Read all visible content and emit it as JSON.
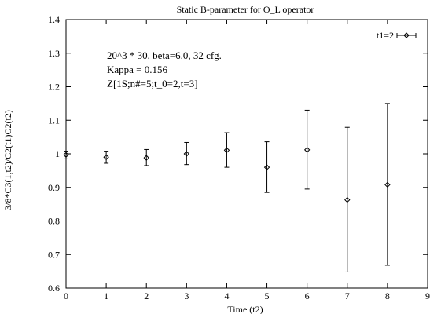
{
  "chart_data": {
    "type": "scatter",
    "title": "Static B-parameter for O_L operator",
    "xlabel": "Time (t2)",
    "ylabel": "3/8*C3(1,t2)/C2(t1)C2(t2)",
    "xlim": [
      0,
      9
    ],
    "ylim": [
      0.6,
      1.4
    ],
    "xticks": [
      "0",
      "1",
      "2",
      "3",
      "4",
      "5",
      "6",
      "7",
      "8",
      "9"
    ],
    "yticks": [
      "0.6",
      "0.7",
      "0.8",
      "0.9",
      "1",
      "1.1",
      "1.2",
      "1.3",
      "1.4"
    ],
    "grid": false,
    "legend_position": "top-right",
    "annotations": [
      "20^3 * 30, beta=6.0, 32 cfg.",
      "Kappa = 0.156",
      "Z[1S;n#=5;t_0=2,t=3]"
    ],
    "series": [
      {
        "name": "t1=2",
        "marker": "diamond",
        "color": "#000000",
        "x": [
          0,
          1,
          2,
          3,
          4,
          5,
          6,
          7,
          8
        ],
        "y": [
          0.997,
          0.99,
          0.988,
          1.0,
          1.011,
          0.96,
          1.012,
          0.863,
          0.908
        ],
        "err_low": [
          0.985,
          0.972,
          0.965,
          0.968,
          0.96,
          0.885,
          0.895,
          0.648,
          0.668
        ],
        "err_high": [
          1.008,
          1.008,
          1.013,
          1.034,
          1.063,
          1.036,
          1.13,
          1.079,
          1.15
        ]
      }
    ]
  }
}
